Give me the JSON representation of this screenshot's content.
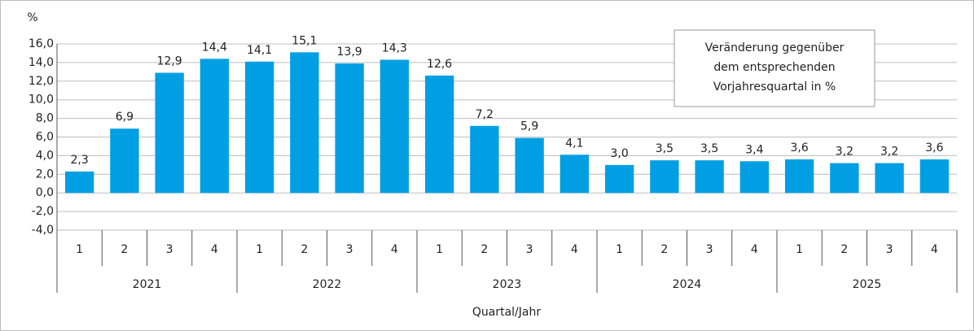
{
  "chart_data": {
    "type": "bar",
    "unit_label": "%",
    "x_label": "Quartal/Jahr",
    "annotation": [
      "Veränderung gegenüber",
      "dem entsprechenden",
      "Vorjahresquartal in %"
    ],
    "categories": [
      "1",
      "2",
      "3",
      "4",
      "1",
      "2",
      "3",
      "4",
      "1",
      "2",
      "3",
      "4",
      "1",
      "2",
      "3",
      "4",
      "1",
      "2",
      "3",
      "4"
    ],
    "year_groups": [
      "2021",
      "2022",
      "2023",
      "2024",
      "2025"
    ],
    "values": [
      2.3,
      6.9,
      12.9,
      14.4,
      14.1,
      15.1,
      13.9,
      14.3,
      12.6,
      7.2,
      5.9,
      4.1,
      3.0,
      3.5,
      3.5,
      3.4,
      3.6,
      3.2,
      3.2,
      3.6
    ],
    "value_labels": [
      "2,3",
      "6,9",
      "12,9",
      "14,4",
      "14,1",
      "15,1",
      "13,9",
      "14,3",
      "12,6",
      "7,2",
      "5,9",
      "4,1",
      "3,0",
      "3,5",
      "3,5",
      "3,4",
      "3,6",
      "3,2",
      "3,2",
      "3,6"
    ],
    "color": "#009fe3",
    "ylim": [
      -4,
      16
    ],
    "yticks": [
      {
        "value": -4,
        "label": "-4,0"
      },
      {
        "value": -2,
        "label": "-2,0"
      },
      {
        "value": 0,
        "label": "0,0"
      },
      {
        "value": 2,
        "label": "2,0"
      },
      {
        "value": 4,
        "label": "4,0"
      },
      {
        "value": 6,
        "label": "6,0"
      },
      {
        "value": 8,
        "label": "8,0"
      },
      {
        "value": 10,
        "label": "10,0"
      },
      {
        "value": 12,
        "label": "12,0"
      },
      {
        "value": 14,
        "label": "14,0"
      },
      {
        "value": 16,
        "label": "16,0"
      }
    ],
    "grid": true
  }
}
